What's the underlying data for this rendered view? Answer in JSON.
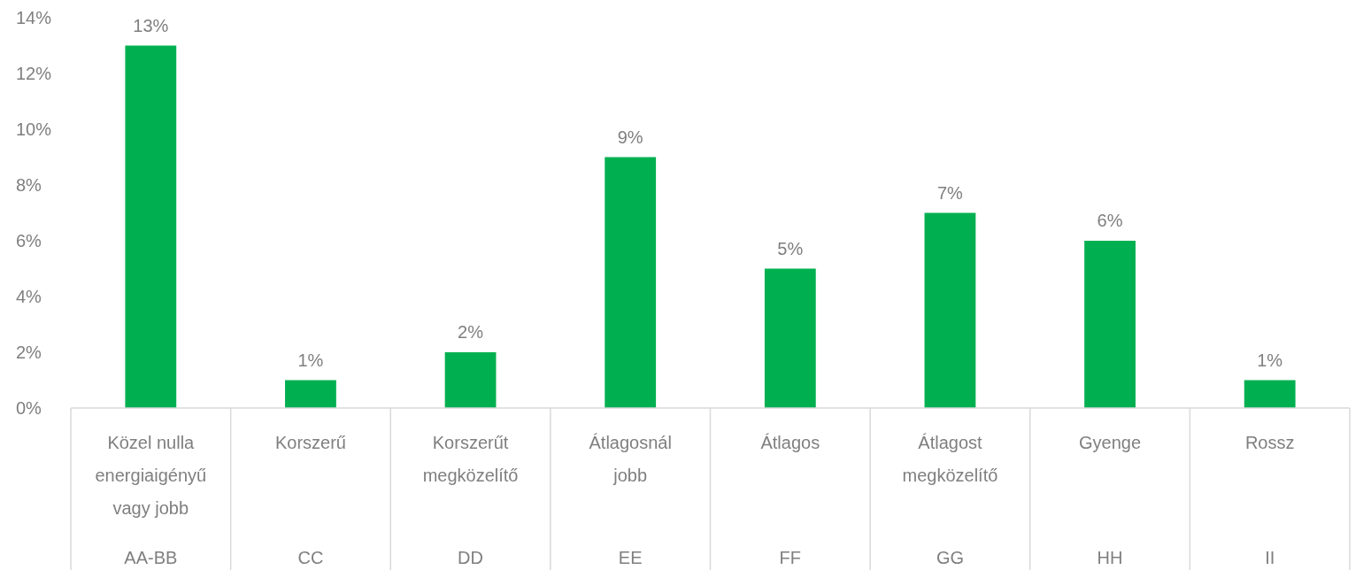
{
  "chart_data": {
    "type": "bar",
    "categories": [
      "Közel nulla energiaigényű vagy jobb\nAA-BB",
      "Korszerű\nCC",
      "Korszerűt megközelítő\nDD",
      "Átlagosnál jobb\nEE",
      "Átlagos\nFF",
      "Átlagost megközelítő\nGG",
      "Gyenge\nHH",
      "Rossz\nII"
    ],
    "values": [
      13,
      1,
      2,
      9,
      5,
      7,
      6,
      1
    ],
    "value_labels": [
      "13%",
      "1%",
      "2%",
      "9%",
      "5%",
      "7%",
      "6%",
      "1%"
    ],
    "color": "#00b050",
    "ylim": [
      0,
      14
    ],
    "yticks": [
      {
        "value": 0,
        "label": "0%"
      },
      {
        "value": 2,
        "label": "2%"
      },
      {
        "value": 4,
        "label": "4%"
      },
      {
        "value": 6,
        "label": "6%"
      },
      {
        "value": 8,
        "label": "8%"
      },
      {
        "value": 10,
        "label": "10%"
      },
      {
        "value": 12,
        "label": "12%"
      },
      {
        "value": 14,
        "label": "14%"
      }
    ],
    "grid": false
  }
}
